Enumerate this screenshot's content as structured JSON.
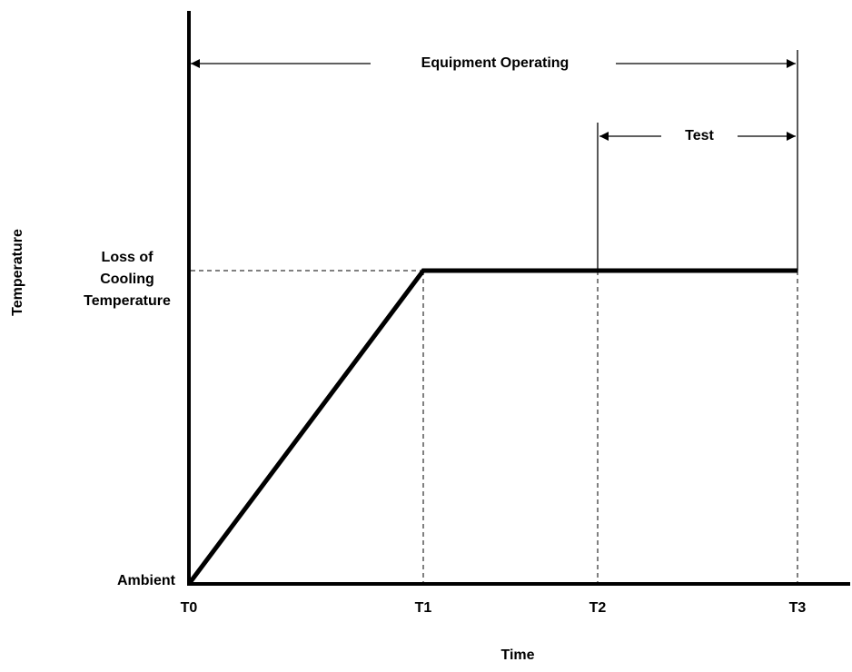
{
  "diagram": {
    "y_axis_label": "Temperature",
    "x_axis_label": "Time",
    "y_levels": {
      "high": [
        "Loss of",
        "Cooling",
        "Temperature"
      ],
      "low": "Ambient"
    },
    "time_points": [
      "T0",
      "T1",
      "T2",
      "T3"
    ],
    "spans": {
      "equipment": "Equipment Operating",
      "test": "Test"
    }
  }
}
